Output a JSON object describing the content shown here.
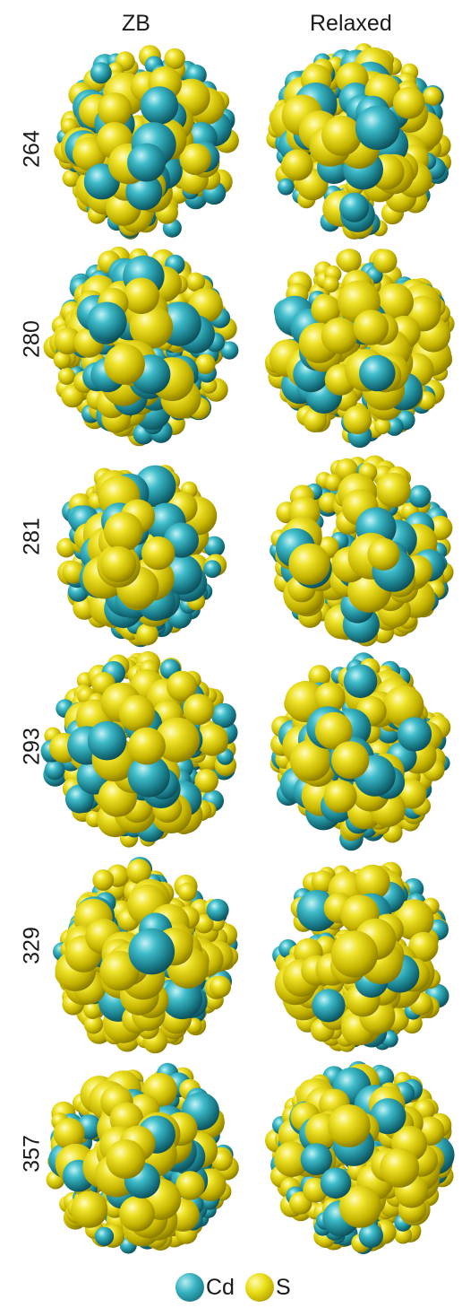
{
  "headers": {
    "zb": "ZB",
    "relaxed": "Relaxed"
  },
  "rows": [
    {
      "label": "264"
    },
    {
      "label": "280"
    },
    {
      "label": "281"
    },
    {
      "label": "293"
    },
    {
      "label": "329"
    },
    {
      "label": "357"
    }
  ],
  "legend": {
    "cd_label": "Cd",
    "s_label": "S"
  },
  "colors": {
    "cd": "#2aa3b1",
    "s": "#e0d412"
  }
}
